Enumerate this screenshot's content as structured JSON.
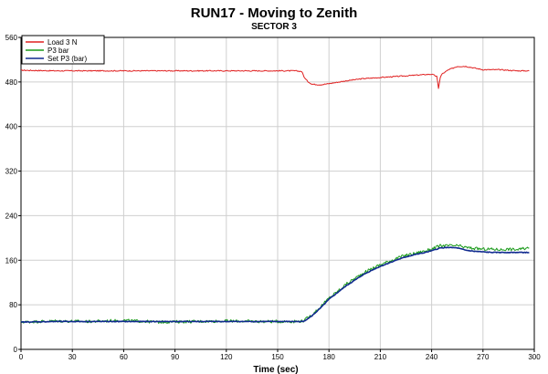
{
  "chart_data": {
    "type": "line",
    "title": "RUN17 - Moving to Zenith",
    "subtitle": "SECTOR 3",
    "xlabel": "Time (sec)",
    "xlim": [
      0,
      300
    ],
    "ylim": [
      0,
      560
    ],
    "xticks": [
      0,
      30,
      60,
      90,
      120,
      150,
      180,
      210,
      240,
      270,
      300
    ],
    "yticks": [
      0,
      80,
      160,
      240,
      320,
      400,
      480,
      560
    ],
    "grid": true,
    "legend_position": "top-left",
    "series": [
      {
        "name": "Load 3 N",
        "color": "#e02020",
        "x": [
          0,
          20,
          40,
          60,
          80,
          100,
          120,
          140,
          160,
          164,
          166,
          168,
          170,
          175,
          180,
          190,
          200,
          210,
          220,
          230,
          240,
          243,
          244,
          245,
          246,
          248,
          250,
          255,
          260,
          265,
          270,
          280,
          290,
          297
        ],
        "y": [
          501,
          500,
          500,
          500,
          500,
          500,
          500,
          500,
          500,
          499,
          486,
          480,
          476,
          475,
          477,
          482,
          486,
          488,
          490,
          492,
          494,
          490,
          468,
          488,
          494,
          498,
          502,
          508,
          508,
          505,
          502,
          502,
          500,
          500
        ]
      },
      {
        "name": "P3 bar",
        "color": "#1a9a1a",
        "x": [
          0,
          20,
          40,
          60,
          80,
          100,
          120,
          140,
          160,
          165,
          170,
          175,
          180,
          185,
          190,
          195,
          200,
          205,
          210,
          215,
          220,
          225,
          230,
          235,
          240,
          245,
          250,
          255,
          260,
          265,
          270,
          275,
          280,
          285,
          290,
          297
        ],
        "y": [
          49,
          51,
          50,
          52,
          49,
          50,
          51,
          50,
          50,
          51,
          62,
          76,
          92,
          104,
          117,
          127,
          137,
          145,
          152,
          158,
          164,
          169,
          172,
          176,
          180,
          186,
          186,
          186,
          183,
          181,
          180,
          180,
          179,
          180,
          179,
          182
        ]
      },
      {
        "name": "Set P3 (bar)",
        "color": "#102a8f",
        "x": [
          0,
          20,
          40,
          60,
          80,
          100,
          120,
          140,
          160,
          165,
          170,
          175,
          180,
          185,
          190,
          195,
          200,
          205,
          210,
          215,
          220,
          225,
          230,
          235,
          240,
          245,
          250,
          255,
          260,
          265,
          270,
          275,
          280,
          285,
          290,
          297
        ],
        "y": [
          49,
          50,
          50,
          50,
          50,
          50,
          50,
          50,
          50,
          50,
          60,
          74,
          90,
          102,
          114,
          124,
          134,
          142,
          149,
          155,
          161,
          166,
          170,
          173,
          177,
          182,
          183,
          182,
          178,
          176,
          175,
          174,
          174,
          174,
          174,
          174
        ]
      }
    ]
  }
}
